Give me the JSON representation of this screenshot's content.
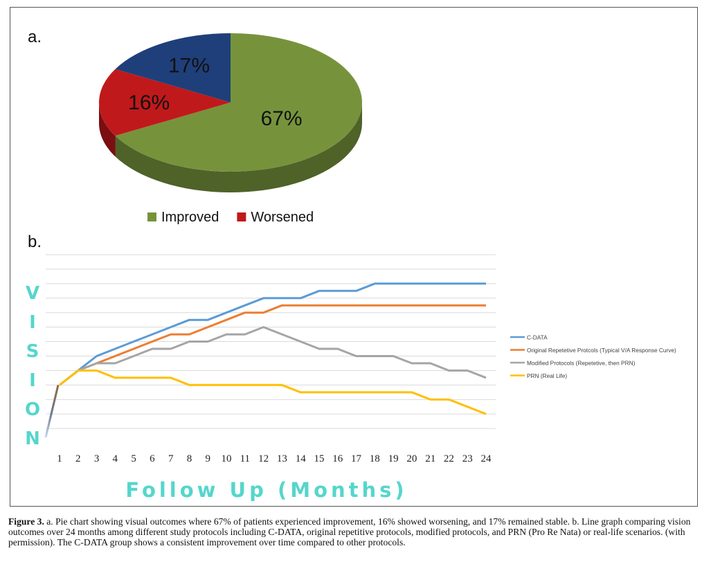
{
  "chart_data": [
    {
      "panel_label": "a.",
      "type": "pie",
      "slices": [
        {
          "label": "Improved",
          "value": 67,
          "display": "67%",
          "color": "#76933C",
          "side_color": "#4F6228",
          "text_color": "#111111"
        },
        {
          "label": "Worsened",
          "value": 16,
          "display": "16%",
          "color": "#C0191B",
          "side_color": "#7A0E10",
          "text_color": "#111111"
        },
        {
          "label": "",
          "value": 17,
          "display": "17%",
          "color": "#1F3F7A",
          "side_color": "#142A52",
          "text_color": "#111111"
        }
      ],
      "legend": [
        "Improved",
        "Worsened"
      ],
      "legend_position": "bottom"
    },
    {
      "panel_label": "b.",
      "type": "line",
      "xlabel": "Follow Up (Months)",
      "ylabel": "VISION",
      "x": [
        1,
        2,
        3,
        4,
        5,
        6,
        7,
        8,
        9,
        10,
        11,
        12,
        13,
        14,
        15,
        16,
        17,
        18,
        19,
        20,
        21,
        22,
        23,
        24
      ],
      "ylim": [
        0,
        13
      ],
      "grid": true,
      "legend_position": "right",
      "series": [
        {
          "name": "C-DATA",
          "color": "#5B9BD5",
          "values": [
            4,
            5,
            6,
            6.5,
            7,
            7.5,
            8,
            8.5,
            8.5,
            9,
            9.5,
            10,
            10,
            10,
            10.5,
            10.5,
            10.5,
            11,
            11,
            11,
            11,
            11,
            11,
            11
          ]
        },
        {
          "name": "Original Repetetive Protcols (Typical V/A Response Curve)",
          "color": "#ED7D31",
          "values": [
            4,
            5,
            5.5,
            6,
            6.5,
            7,
            7.5,
            7.5,
            8,
            8.5,
            9,
            9,
            9.5,
            9.5,
            9.5,
            9.5,
            9.5,
            9.5,
            9.5,
            9.5,
            9.5,
            9.5,
            9.5,
            9.5
          ]
        },
        {
          "name": "Modified Protocols (Repetetive, then PRN)",
          "color": "#A5A5A5",
          "values": [
            4,
            5,
            5.5,
            5.5,
            6,
            6.5,
            6.5,
            7,
            7,
            7.5,
            7.5,
            8,
            7.5,
            7,
            6.5,
            6.5,
            6,
            6,
            6,
            5.5,
            5.5,
            5,
            5,
            4.5
          ]
        },
        {
          "name": "PRN          (Real Life)",
          "color": "#FFC000",
          "values": [
            4,
            5,
            5,
            4.5,
            4.5,
            4.5,
            4.5,
            4,
            4,
            4,
            4,
            4,
            4,
            3.5,
            3.5,
            3.5,
            3.5,
            3.5,
            3.5,
            3.5,
            3,
            3,
            2.5,
            2
          ]
        }
      ]
    }
  ],
  "caption": {
    "label": "Figure 3.",
    "text": " a. Pie chart showing visual outcomes where 67% of patients experienced improvement, 16% showed worsening, and 17% remained stable. b. Line graph comparing vision outcomes over 24 months among different study protocols including C-DATA, original repetitive protocols, modified protocols, and PRN (Pro Re Nata) or real-life scenarios. (with permission). The C-DATA group shows a consistent improvement over time compared to other protocols."
  },
  "colors": {
    "axis_title": "#55D6CC",
    "grid": "#D9D9D9",
    "frame": "#555555"
  }
}
